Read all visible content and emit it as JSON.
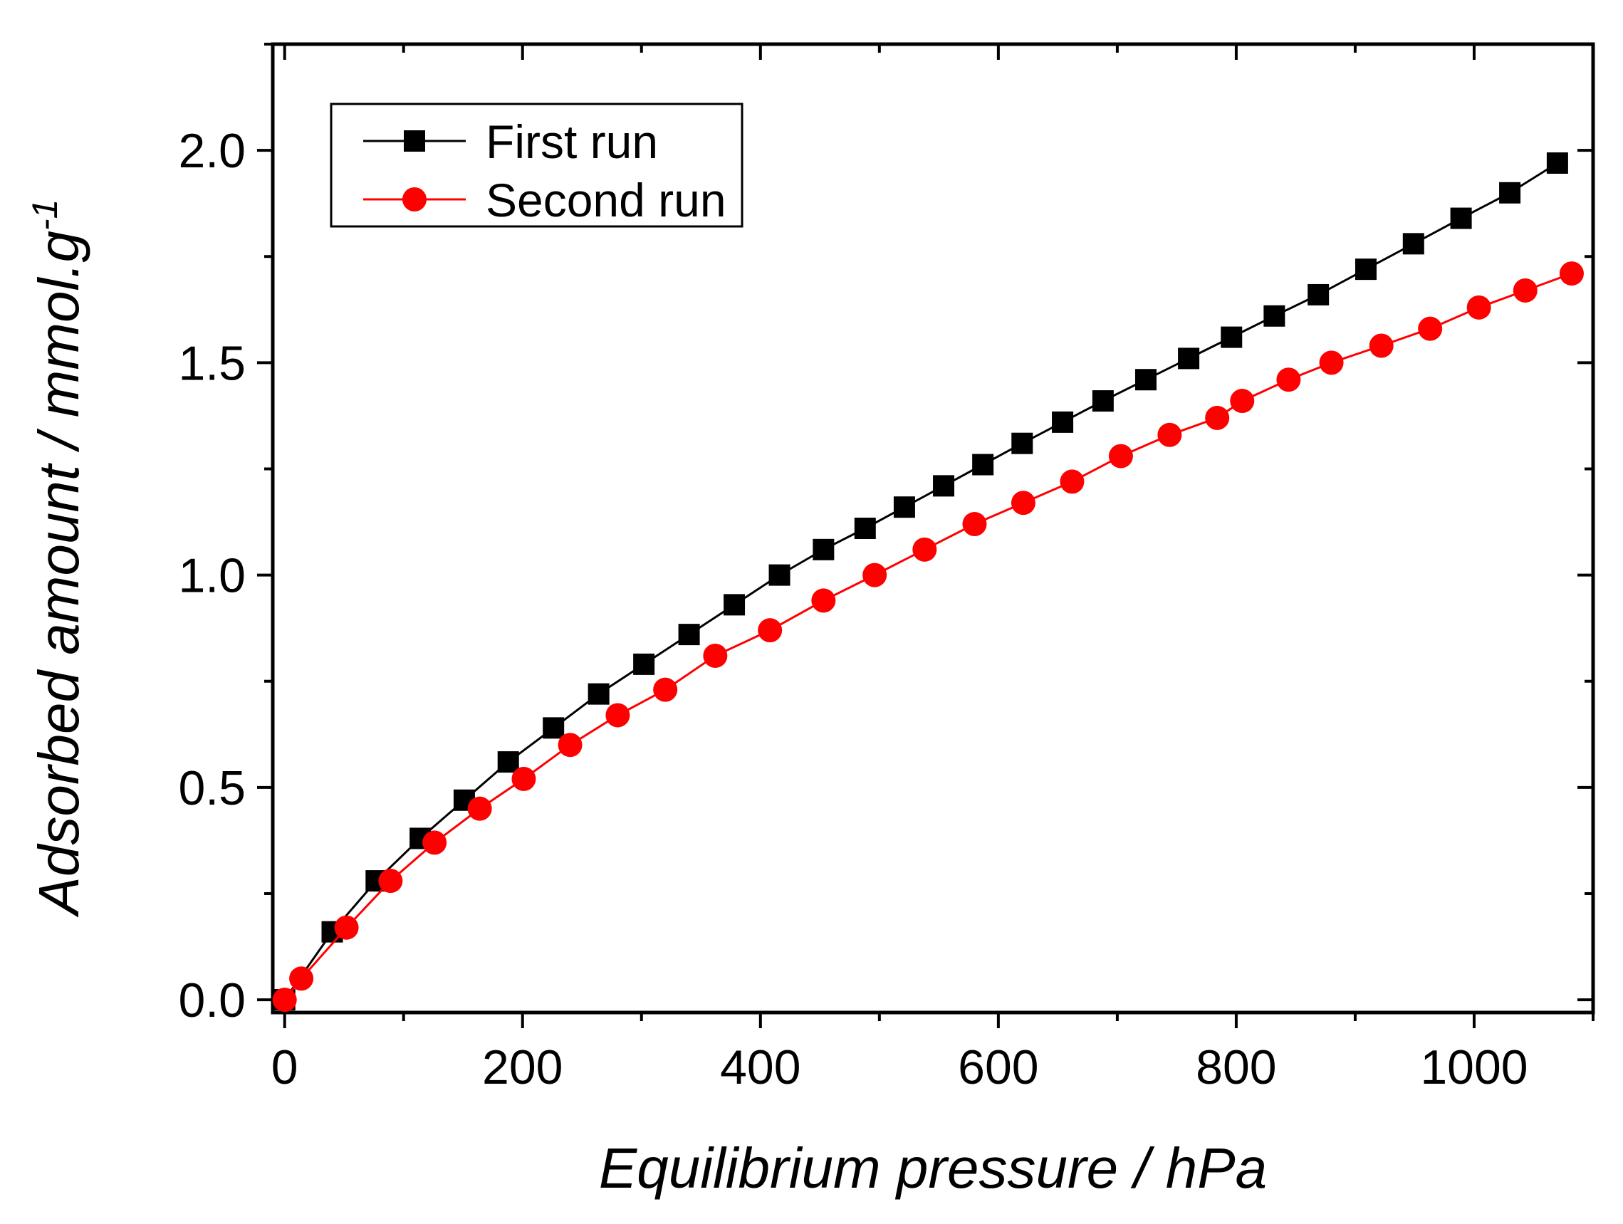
{
  "chart_data": {
    "type": "line",
    "title": "",
    "xlabel": "Equilibrium pressure / hPa",
    "ylabel": "Adsorbed amount / mmol.g",
    "ylabel_superscript": "-1",
    "xlim": [
      -10,
      1100
    ],
    "ylim": [
      -0.03,
      2.25
    ],
    "xticks": [
      0,
      200,
      400,
      600,
      800,
      1000
    ],
    "xtick_labels": [
      "0",
      "200",
      "400",
      "600",
      "800",
      "1000"
    ],
    "yticks": [
      0.0,
      0.5,
      1.0,
      1.5,
      2.0
    ],
    "ytick_labels": [
      "0.0",
      "0.5",
      "1.0",
      "1.5",
      "2.0"
    ],
    "legend_position": "top-left",
    "grid": false,
    "series": [
      {
        "name": "First run",
        "color": "#000000",
        "marker": "square",
        "x": [
          0,
          40,
          77,
          114,
          151,
          188,
          226,
          264,
          302,
          340,
          378,
          416,
          453,
          488,
          521,
          554,
          587,
          620,
          654,
          688,
          724,
          760,
          796,
          832,
          869,
          909,
          949,
          989,
          1030,
          1070
        ],
        "y": [
          0.0,
          0.16,
          0.28,
          0.38,
          0.47,
          0.56,
          0.64,
          0.72,
          0.79,
          0.86,
          0.93,
          1.0,
          1.06,
          1.11,
          1.16,
          1.21,
          1.26,
          1.31,
          1.36,
          1.41,
          1.46,
          1.51,
          1.56,
          1.61,
          1.66,
          1.72,
          1.78,
          1.84,
          1.9,
          1.97
        ]
      },
      {
        "name": "Second run",
        "color": "#ff0000",
        "marker": "circle",
        "x": [
          0,
          14,
          52,
          89,
          126,
          164,
          201,
          240,
          280,
          320,
          362,
          408,
          453,
          496,
          538,
          580,
          621,
          662,
          703,
          744,
          784,
          805,
          844,
          880,
          922,
          963,
          1004,
          1043,
          1082
        ],
        "y": [
          0.0,
          0.05,
          0.17,
          0.28,
          0.37,
          0.45,
          0.52,
          0.6,
          0.67,
          0.73,
          0.81,
          0.87,
          0.94,
          1.0,
          1.06,
          1.12,
          1.17,
          1.22,
          1.28,
          1.33,
          1.37,
          1.41,
          1.46,
          1.5,
          1.54,
          1.58,
          1.63,
          1.67,
          1.71
        ]
      }
    ]
  }
}
